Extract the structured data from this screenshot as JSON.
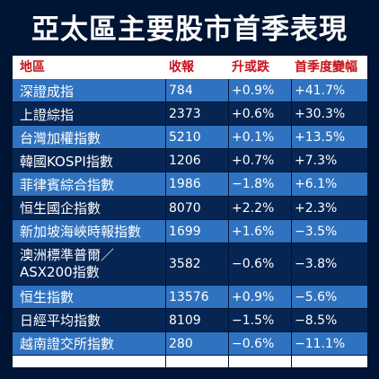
{
  "chart_data": {
    "type": "table",
    "title": "亞太區主要股市首季表現",
    "columns": [
      "地區",
      "收報",
      "升或跌",
      "首季度變幅"
    ],
    "rows": [
      [
        "深證成指",
        "784",
        "+0.9%",
        "+41.7%"
      ],
      [
        "上證綜指",
        "2373",
        "+0.6%",
        "+30.3%"
      ],
      [
        "台灣加權指數",
        "5210",
        "+0.1%",
        "+13.5%"
      ],
      [
        "韓國KOSPI指數",
        "1206",
        "+0.7%",
        "+7.3%"
      ],
      [
        "菲律賓綜合指數",
        "1986",
        "−1.8%",
        "+6.1%"
      ],
      [
        "恒生國企指數",
        "8070",
        "+2.2%",
        "+2.3%"
      ],
      [
        "新加坡海峽時報指數",
        "1699",
        "+1.6%",
        "−3.5%"
      ],
      [
        "澳洲標準普爾／ASX200指數",
        "3582",
        "−0.6%",
        "−3.8%"
      ],
      [
        "恒生指數",
        "13576",
        "+0.9%",
        "−5.6%"
      ],
      [
        "日經平均指數",
        "8109",
        "−1.5%",
        "−8.5%"
      ],
      [
        "越南證交所指數",
        "280",
        "−0.6%",
        "−11.1%"
      ]
    ]
  }
}
